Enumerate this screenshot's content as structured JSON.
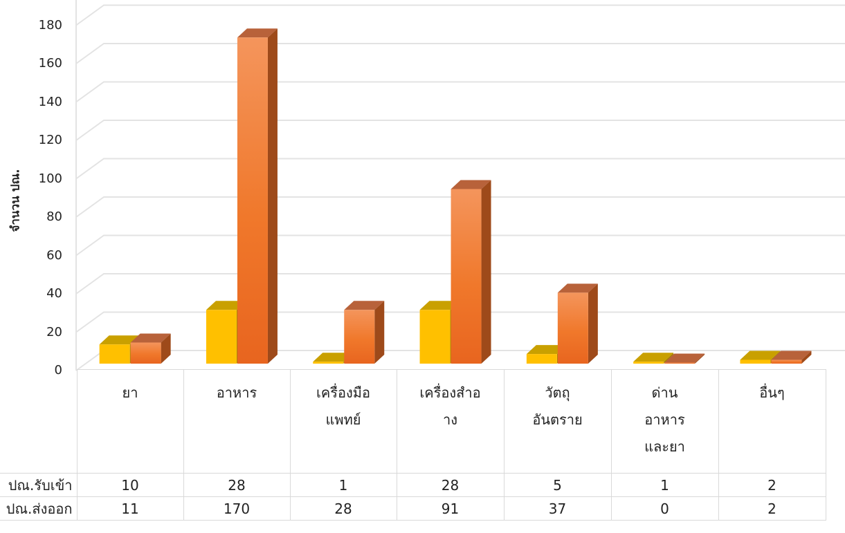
{
  "chart_data": {
    "type": "bar",
    "ylabel": "จำนวน ปณ.",
    "ylim": [
      0,
      180
    ],
    "yticks": [
      0,
      20,
      40,
      60,
      80,
      100,
      120,
      140,
      160,
      180
    ],
    "grid": true,
    "categories": [
      [
        "ยา"
      ],
      [
        "อาหาร"
      ],
      [
        "เครื่องมือ",
        "แพทย์"
      ],
      [
        "เครื่องสำอ",
        "าง"
      ],
      [
        "วัตถุ",
        "อันตราย"
      ],
      [
        "ด่าน",
        "อาหาร",
        "และยา"
      ],
      [
        "อื่นๆ"
      ]
    ],
    "series": [
      {
        "name": "ปณ.รับเข้า",
        "values": [
          10,
          28,
          1,
          28,
          5,
          1,
          2
        ],
        "color": "#ffc000"
      },
      {
        "name": "ปณ.ส่งออก",
        "values": [
          11,
          170,
          28,
          91,
          37,
          0,
          2
        ],
        "color": "#ed7d31"
      }
    ]
  }
}
